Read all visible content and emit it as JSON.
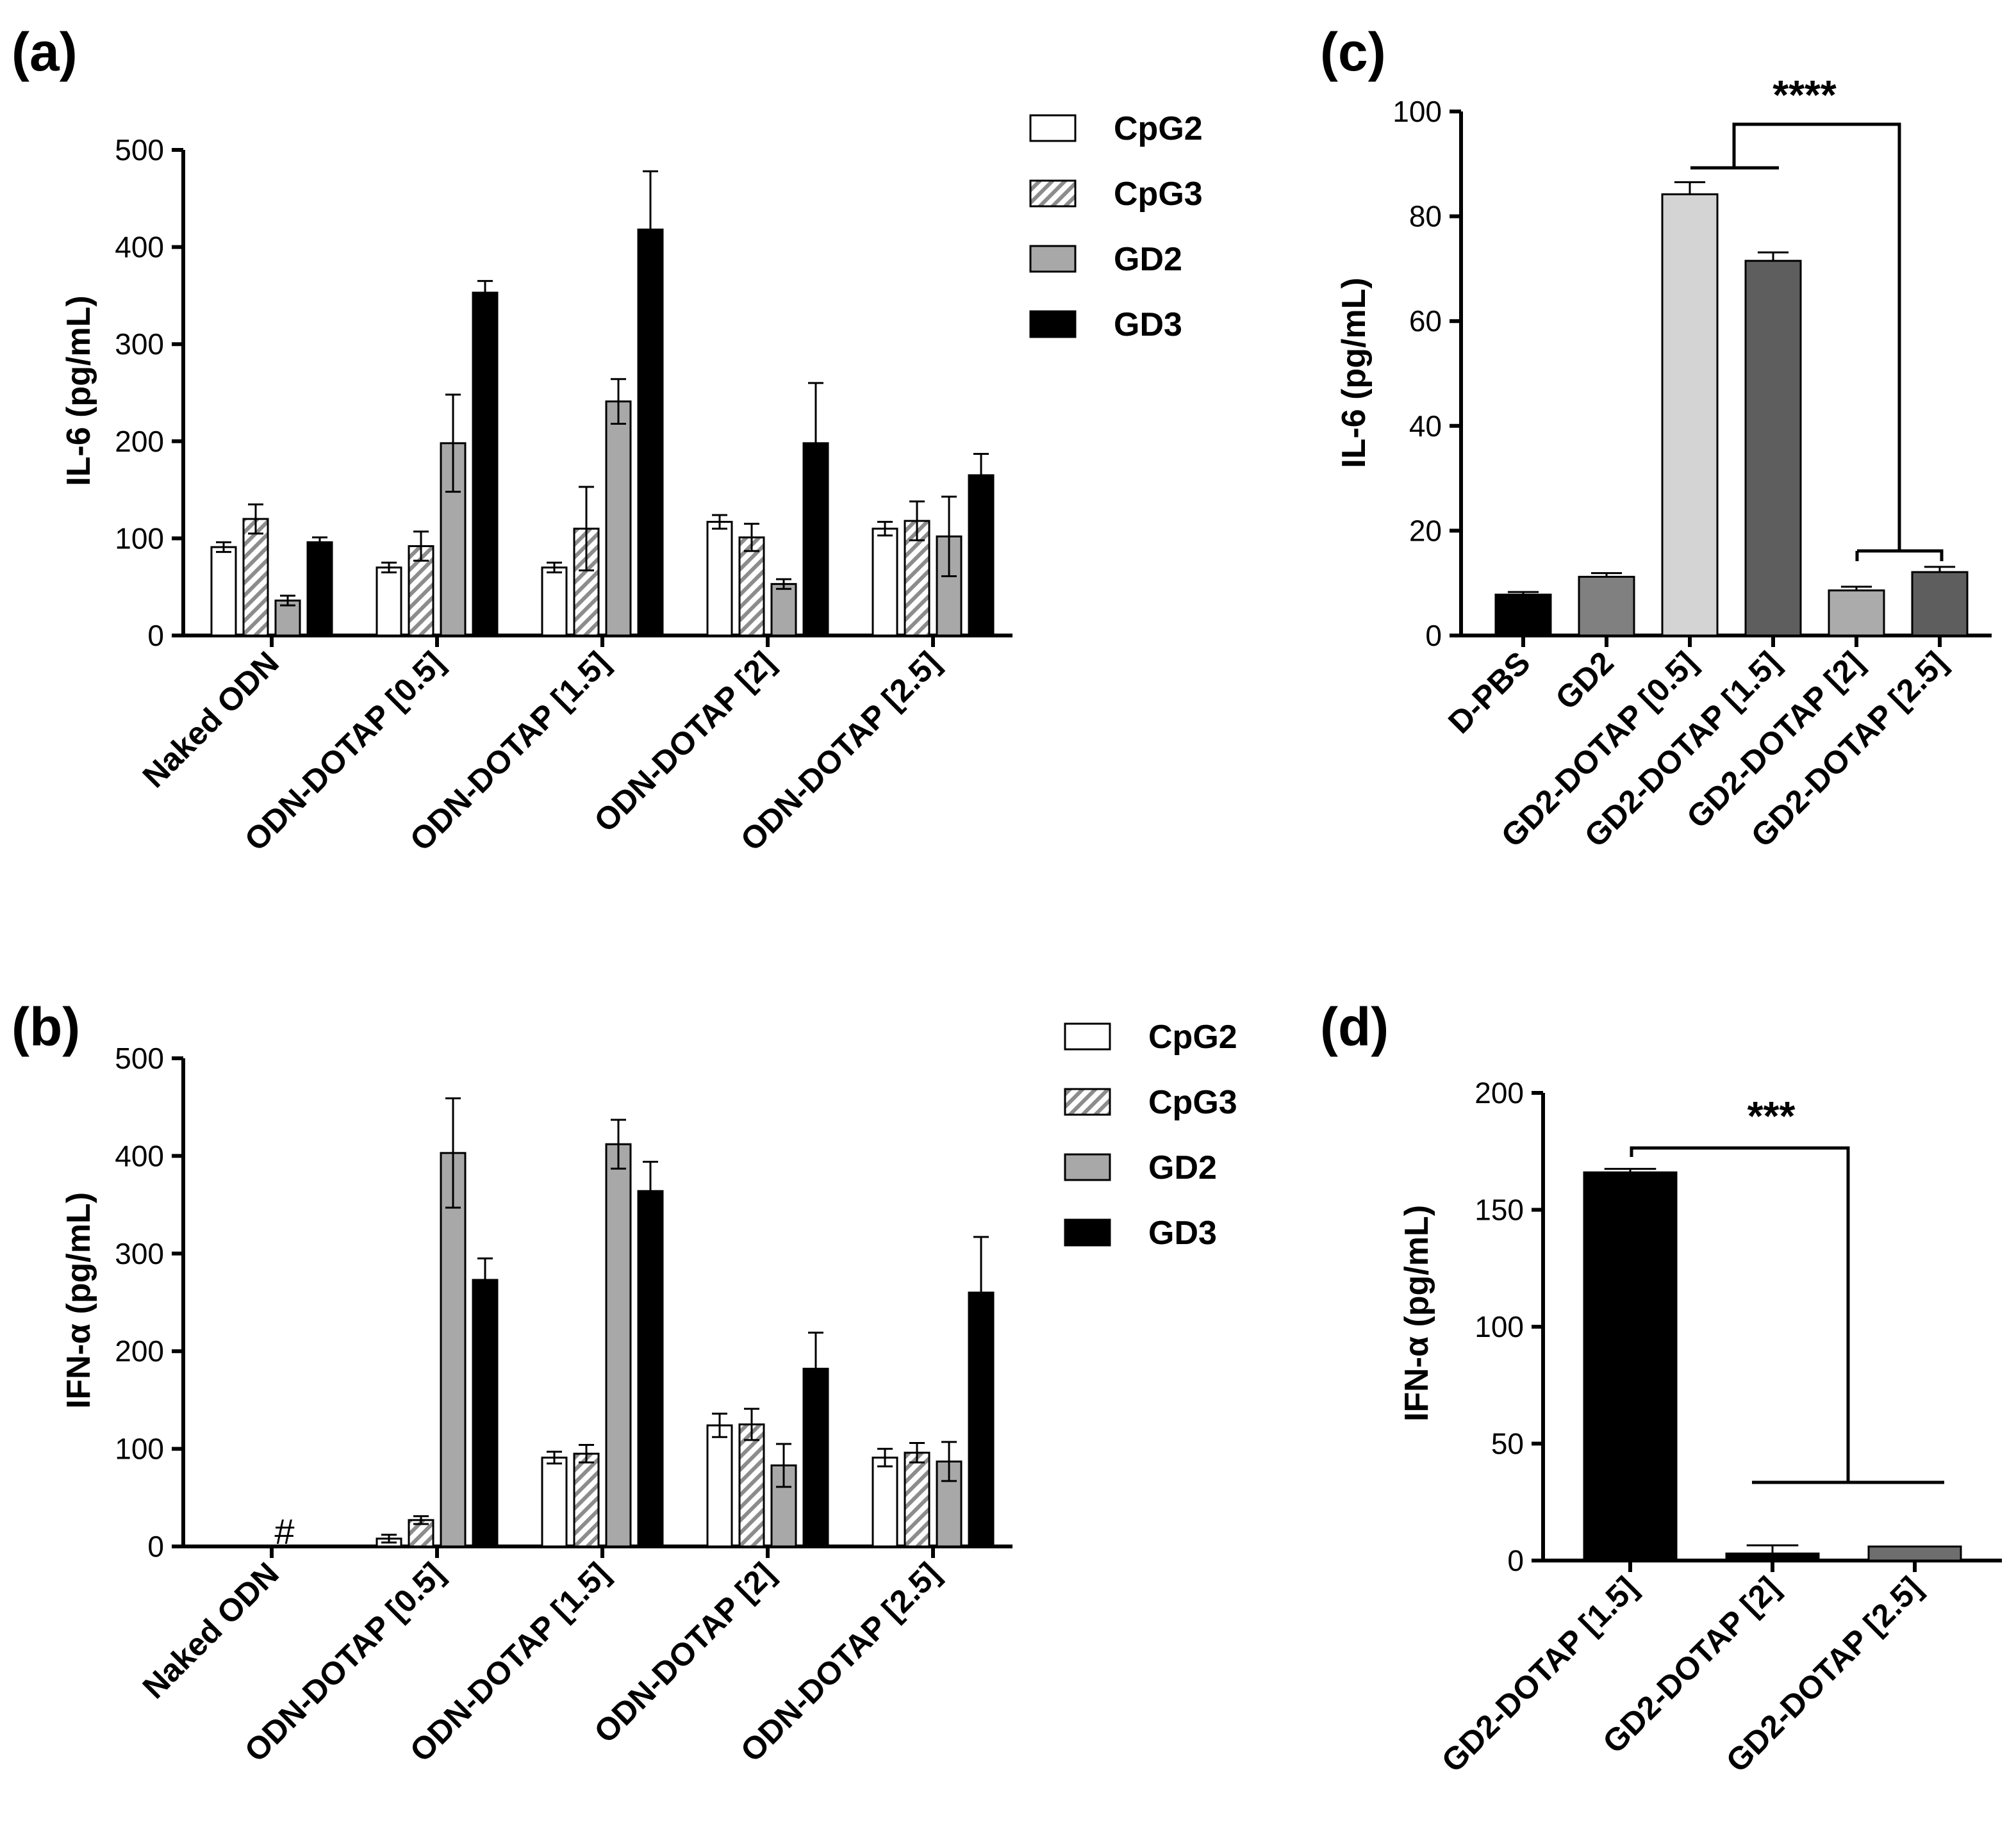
{
  "chart_data": [
    {
      "panel": "(a)",
      "type": "bar",
      "ylabel": "IL-6 (pg/mL)",
      "ylim": [
        0,
        500
      ],
      "yticks": [
        0,
        100,
        200,
        300,
        400,
        500
      ],
      "categories": [
        "Naked ODN",
        "ODN-DOTAP [0.5]",
        "ODN-DOTAP [1.5]",
        "ODN-DOTAP [2]",
        "ODN-DOTAP [2.5]"
      ],
      "legend": {
        "placement": "top-right",
        "entries": [
          "CpG2",
          "CpG3",
          "GD2",
          "GD3"
        ]
      },
      "series": [
        {
          "name": "CpG2",
          "fill": "white",
          "values": [
            91,
            70,
            70,
            117,
            110
          ],
          "errors": [
            5,
            5,
            5,
            7,
            7
          ]
        },
        {
          "name": "CpG3",
          "fill": "hatch",
          "values": [
            120,
            92,
            110,
            101,
            118
          ],
          "errors": [
            15,
            15,
            43,
            14,
            20
          ]
        },
        {
          "name": "GD2",
          "fill": "gray",
          "values": [
            36,
            198,
            241,
            53,
            102
          ],
          "errors": [
            5,
            50,
            23,
            5,
            41
          ]
        },
        {
          "name": "GD3",
          "fill": "black",
          "values": [
            96,
            353,
            418,
            198,
            165
          ],
          "errors": [
            5,
            12,
            60,
            62,
            22
          ]
        }
      ]
    },
    {
      "panel": "(b)",
      "type": "bar",
      "ylabel": "IFN-α (pg/mL)",
      "ylim": [
        0,
        500
      ],
      "yticks": [
        0,
        100,
        200,
        300,
        400,
        500
      ],
      "categories": [
        "Naked ODN",
        "ODN-DOTAP [0.5]",
        "ODN-DOTAP [1.5]",
        "ODN-DOTAP [2]",
        "ODN-DOTAP [2.5]"
      ],
      "legend": {
        "placement": "top-right",
        "entries": [
          "CpG2",
          "CpG3",
          "GD2",
          "GD3"
        ]
      },
      "annotation": "#",
      "series": [
        {
          "name": "CpG2",
          "fill": "white",
          "values": [
            0,
            8,
            91,
            124,
            91
          ],
          "errors": [
            0,
            4,
            6,
            12,
            9
          ]
        },
        {
          "name": "CpG3",
          "fill": "hatch",
          "values": [
            0,
            27,
            95,
            125,
            96
          ],
          "errors": [
            0,
            4,
            9,
            16,
            10
          ]
        },
        {
          "name": "GD2",
          "fill": "gray",
          "values": [
            0,
            403,
            412,
            83,
            87
          ],
          "errors": [
            0,
            56,
            25,
            22,
            20
          ]
        },
        {
          "name": "GD3",
          "fill": "black",
          "values": [
            0,
            273,
            364,
            182,
            260
          ],
          "errors": [
            0,
            22,
            30,
            37,
            57
          ]
        }
      ]
    },
    {
      "panel": "(c)",
      "type": "bar",
      "ylabel": "IL-6 (pg/mL)",
      "ylim": [
        0,
        100
      ],
      "yticks": [
        0,
        20,
        40,
        60,
        80,
        100
      ],
      "categories": [
        "D-PBS",
        "GD2",
        "GD2-DOTAP [0.5]",
        "GD2-DOTAP [1.5]",
        "GD2-DOTAP [2]",
        "GD2-DOTAP [2.5]"
      ],
      "values": [
        7.8,
        11.2,
        84.2,
        71.5,
        8.6,
        12.1
      ],
      "errors": [
        0.5,
        0.7,
        2.3,
        1.6,
        0.7,
        1.0
      ],
      "colors": [
        "#000000",
        "#808080",
        "#d4d4d4",
        "#5e5e5e",
        "#ababab",
        "#5e5e5e"
      ],
      "significance": "****"
    },
    {
      "panel": "(d)",
      "type": "bar",
      "ylabel": "IFN-α (pg/mL)",
      "ylim": [
        0,
        200
      ],
      "yticks": [
        0,
        50,
        100,
        150,
        200
      ],
      "categories": [
        "GD2-DOTAP [1.5]",
        "GD2-DOTAP [2]",
        "GD2-DOTAP [2.5]"
      ],
      "values": [
        166,
        3,
        6
      ],
      "errors": [
        1.5,
        3.5,
        0
      ],
      "colors": [
        "#000000",
        "#000000",
        "#6e6e6e"
      ],
      "significance": "***"
    }
  ]
}
